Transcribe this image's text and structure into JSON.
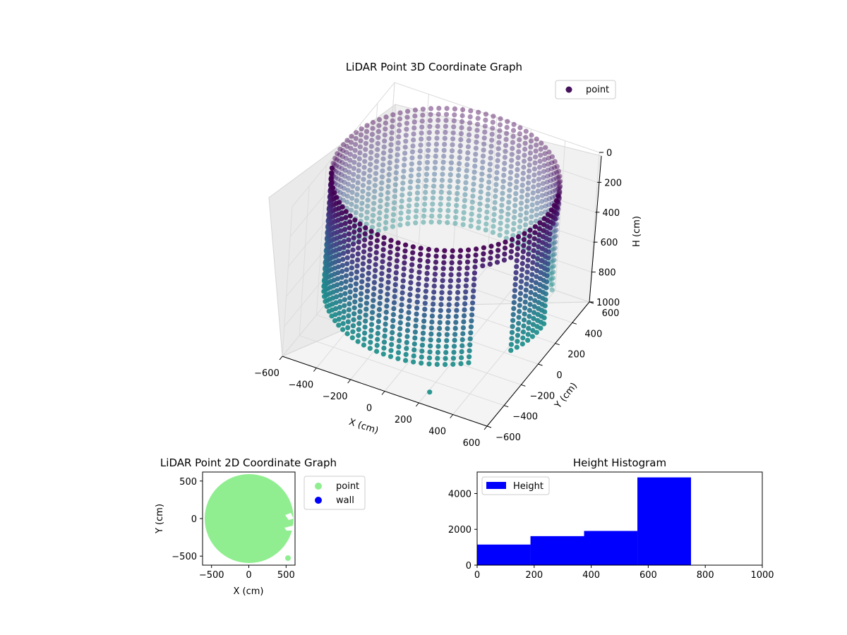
{
  "chart_data": [
    {
      "type": "scatter",
      "projection": "3d",
      "title": "LiDAR Point 3D Coordinate Graph",
      "xlabel": "X (cm)",
      "ylabel": "Y (cm)",
      "zlabel": "H (cm)",
      "xticks": [
        "−600",
        "−400",
        "−200",
        "0",
        "200",
        "400",
        "600"
      ],
      "yticks": [
        "−600",
        "−400",
        "−200",
        "0",
        "200",
        "400",
        "600"
      ],
      "zticks": [
        "0",
        "200",
        "400",
        "600",
        "800",
        "1000"
      ],
      "xlim": [
        -600,
        600
      ],
      "ylim": [
        -600,
        600
      ],
      "zlim": [
        1000,
        0
      ],
      "grid": true,
      "legend": {
        "placement": "top-right",
        "entries": [
          "point"
        ]
      },
      "colormap": "viridis",
      "series": [
        {
          "name": "point",
          "shape": "cylindrical wall",
          "radius": 600,
          "h_range": [
            0,
            780
          ],
          "openings": [
            {
              "angle_deg_start": 5,
              "angle_deg_end": 30
            },
            {
              "angle_deg_start": -45,
              "angle_deg_end": -25
            }
          ],
          "stray_points": [
            {
              "x": 240,
              "y": -560,
              "h": 940
            }
          ]
        }
      ]
    },
    {
      "type": "scatter",
      "title": "LiDAR Point 2D Coordinate Graph",
      "xlabel": "X (cm)",
      "ylabel": "Y (cm)",
      "xticks": [
        "−500",
        "0",
        "500"
      ],
      "yticks": [
        "500",
        "0",
        "−500"
      ],
      "xlim": [
        -620,
        620
      ],
      "ylim": [
        -620,
        620
      ],
      "legend": {
        "placement": "outside-right",
        "entries": [
          "point",
          "wall"
        ]
      },
      "series": [
        {
          "name": "point",
          "color": "#90ee90",
          "shape": "filled disc",
          "radius": 600
        },
        {
          "name": "wall",
          "color": "#0000ff",
          "points": []
        }
      ]
    },
    {
      "type": "bar",
      "title": "Height Histogram",
      "xticks": [
        "0",
        "200",
        "400",
        "600",
        "800",
        "1000"
      ],
      "yticks": [
        "0",
        "2000",
        "4000"
      ],
      "xlim": [
        0,
        1000
      ],
      "ylim": [
        0,
        5200
      ],
      "legend": {
        "placement": "top-left",
        "entries": [
          "Height"
        ]
      },
      "series": [
        {
          "name": "Height",
          "color": "#0000ff",
          "bins": [
            {
              "x0": 0,
              "x1": 187,
              "count": 1150
            },
            {
              "x0": 187,
              "x1": 375,
              "count": 1620
            },
            {
              "x0": 375,
              "x1": 562,
              "count": 1910
            },
            {
              "x0": 562,
              "x1": 750,
              "count": 4900
            }
          ]
        }
      ]
    }
  ]
}
